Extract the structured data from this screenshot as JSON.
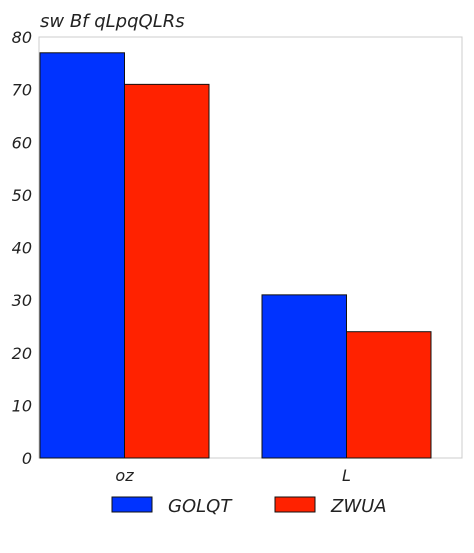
{
  "chart_data": {
    "type": "bar",
    "title": "sw Bf qLpqQLRs",
    "xlabel": "",
    "ylabel": "",
    "categories": [
      "oz",
      "L"
    ],
    "series": [
      {
        "name": "GOLQT",
        "values": [
          77,
          31
        ],
        "color": "#0033ff"
      },
      {
        "name": "ZWUA",
        "values": [
          71,
          24
        ],
        "color": "#ff2200"
      }
    ],
    "ylim": [
      0,
      80
    ],
    "yticks": [
      0,
      10,
      20,
      30,
      40,
      50,
      60,
      70,
      80
    ],
    "grid": false,
    "legend_position": "bottom"
  }
}
